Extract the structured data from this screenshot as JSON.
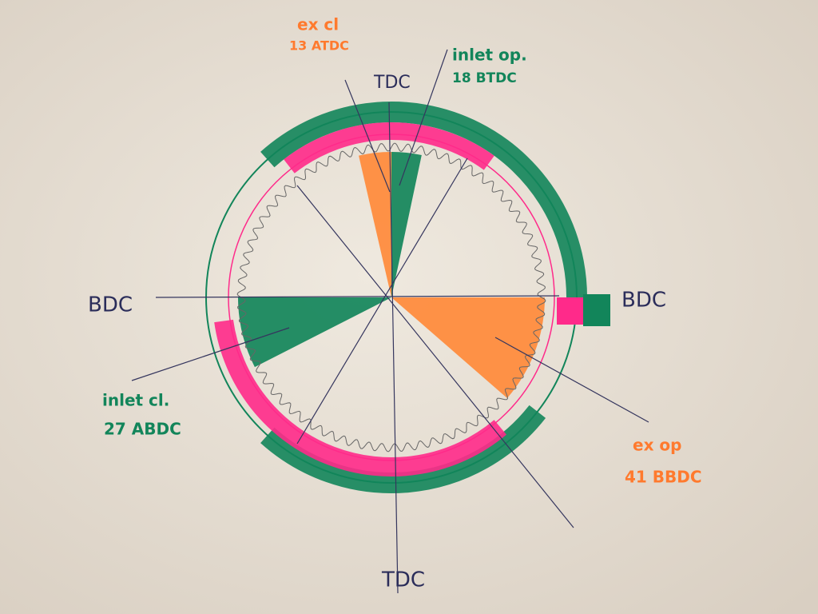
{
  "labels": {
    "top": "TDC",
    "bottom": "TDC",
    "left": "BDC",
    "right": "BDC"
  },
  "annotations": [
    {
      "title": "ex cl",
      "detail": "13 ATDC"
    },
    {
      "title": "inlet op.",
      "detail": "18 BTDC"
    },
    {
      "title": "inlet cl.",
      "detail": "27 ABDC"
    },
    {
      "title": "ex op",
      "detail": "41 BBDC"
    }
  ]
}
